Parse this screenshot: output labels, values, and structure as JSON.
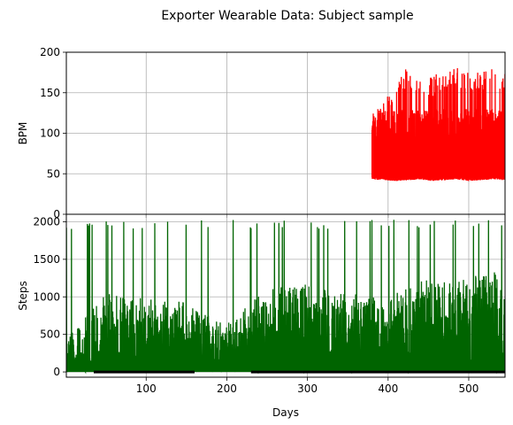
{
  "chart_data": {
    "title": "Exporter Wearable Data: Subject sample",
    "subplots": [
      {
        "type": "line",
        "ylabel": "BPM",
        "xlabel": "",
        "xlim": [
          1,
          545
        ],
        "ylim": [
          0,
          200
        ],
        "yticks": [
          0,
          50,
          100,
          150,
          200
        ],
        "xticks": [
          100,
          200,
          300,
          400,
          500
        ],
        "grid": true,
        "series": [
          {
            "color": "#ff0000",
            "x_range": [
              380,
              545
            ],
            "min_values": [
              43,
              42,
              41,
              42,
              43,
              41,
              42,
              43,
              41,
              42,
              43,
              42
            ],
            "max_values": [
              115,
              140,
              160,
              185,
              175,
              170,
              180,
              182,
              178,
              175,
              183,
              175
            ],
            "typical_range": [
              50,
              120
            ]
          }
        ]
      },
      {
        "type": "line",
        "ylabel": "Steps",
        "xlabel": "Days",
        "xlim": [
          1,
          545
        ],
        "ylim": [
          -70,
          2100
        ],
        "yticks": [
          0,
          500,
          1000,
          1500,
          2000
        ],
        "xticks": [
          100,
          200,
          300,
          400,
          500
        ],
        "xticklabels": [
          "100",
          "200",
          "300",
          "400",
          "500"
        ],
        "grid": true,
        "series": [
          {
            "color": "#006400",
            "x_range": [
              1,
              545
            ],
            "typical_max": [
              420,
              1000,
              950,
              880,
              600,
              1050,
              1120,
              1000,
              940,
              1180,
              1200,
              1300
            ],
            "spike_max": 2030
          },
          {
            "color": "#000000",
            "y_value": 0,
            "x_segments": [
              [
                35,
                160
              ],
              [
                230,
                545
              ]
            ]
          }
        ]
      }
    ]
  }
}
